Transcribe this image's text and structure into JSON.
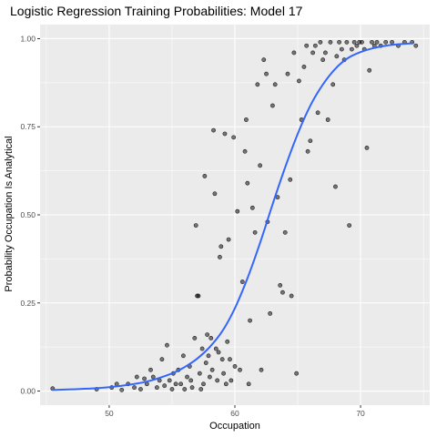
{
  "chart_data": {
    "type": "scatter",
    "title": "Logistic Regression Training Probabilities: Model 17",
    "xlabel": "Occupation",
    "ylabel": "Probability Occupation Is Analytical",
    "xlim": [
      44.5,
      75.5
    ],
    "ylim": [
      -0.04,
      1.04
    ],
    "x_ticks": [
      50,
      60,
      70
    ],
    "x_tick_labels": [
      "50",
      "60",
      "70"
    ],
    "y_ticks": [
      0,
      0.25,
      0.5,
      0.75,
      1.0
    ],
    "y_tick_labels": [
      "0.00",
      "0.25",
      "0.50",
      "0.75",
      "1.00"
    ],
    "grid": true,
    "panel_background": "#ebebeb",
    "point_color": "#000000",
    "point_alpha": 0.5,
    "fit_color": "#3366ff",
    "fit_curve": {
      "x": [
        45.5,
        47,
        49,
        51,
        53,
        55,
        56,
        57,
        58,
        59,
        60,
        61,
        62,
        63,
        64,
        65,
        66,
        67,
        68,
        69,
        70,
        71,
        72,
        73,
        74.2
      ],
      "y": [
        0.003,
        0.005,
        0.008,
        0.015,
        0.027,
        0.05,
        0.068,
        0.092,
        0.125,
        0.17,
        0.235,
        0.32,
        0.42,
        0.53,
        0.635,
        0.73,
        0.81,
        0.87,
        0.915,
        0.945,
        0.962,
        0.973,
        0.98,
        0.984,
        0.987
      ]
    },
    "points": [
      [
        45.5,
        0.007
      ],
      [
        49.0,
        0.005
      ],
      [
        50.2,
        0.01
      ],
      [
        50.6,
        0.02
      ],
      [
        51.0,
        0.003
      ],
      [
        51.5,
        0.02
      ],
      [
        52.0,
        0.01
      ],
      [
        52.2,
        0.04
      ],
      [
        52.5,
        0.005
      ],
      [
        52.8,
        0.035
      ],
      [
        53.0,
        0.02
      ],
      [
        53.3,
        0.06
      ],
      [
        53.5,
        0.04
      ],
      [
        53.8,
        0.01
      ],
      [
        54.0,
        0.03
      ],
      [
        54.2,
        0.09
      ],
      [
        54.4,
        0.015
      ],
      [
        54.6,
        0.13
      ],
      [
        54.8,
        0.03
      ],
      [
        55.0,
        0.005
      ],
      [
        55.1,
        0.05
      ],
      [
        55.3,
        0.02
      ],
      [
        55.5,
        0.06
      ],
      [
        55.7,
        0.02
      ],
      [
        55.9,
        0.1
      ],
      [
        56.0,
        0.005
      ],
      [
        56.2,
        0.04
      ],
      [
        56.4,
        0.07
      ],
      [
        56.5,
        0.03
      ],
      [
        56.6,
        0.01
      ],
      [
        56.8,
        0.15
      ],
      [
        56.9,
        0.47
      ],
      [
        57.0,
        0.27
      ],
      [
        57.1,
        0.27
      ],
      [
        57.2,
        0.05
      ],
      [
        57.3,
        0.005
      ],
      [
        57.4,
        0.12
      ],
      [
        57.5,
        0.02
      ],
      [
        57.6,
        0.61
      ],
      [
        57.7,
        0.08
      ],
      [
        57.8,
        0.16
      ],
      [
        57.9,
        0.1
      ],
      [
        58.0,
        0.04
      ],
      [
        58.1,
        0.15
      ],
      [
        58.2,
        0.06
      ],
      [
        58.3,
        0.74
      ],
      [
        58.4,
        0.56
      ],
      [
        58.5,
        0.12
      ],
      [
        58.6,
        0.03
      ],
      [
        58.7,
        0.11
      ],
      [
        58.8,
        0.38
      ],
      [
        58.9,
        0.41
      ],
      [
        59.0,
        0.09
      ],
      [
        59.1,
        0.05
      ],
      [
        59.2,
        0.73
      ],
      [
        59.3,
        0.02
      ],
      [
        59.4,
        0.14
      ],
      [
        59.5,
        0.43
      ],
      [
        59.6,
        0.09
      ],
      [
        59.7,
        0.03
      ],
      [
        59.9,
        0.72
      ],
      [
        60.0,
        0.07
      ],
      [
        60.2,
        0.51
      ],
      [
        60.4,
        0.06
      ],
      [
        60.6,
        0.31
      ],
      [
        60.8,
        0.68
      ],
      [
        60.9,
        0.77
      ],
      [
        61.0,
        0.59
      ],
      [
        61.1,
        0.02
      ],
      [
        61.2,
        0.2
      ],
      [
        61.4,
        0.52
      ],
      [
        61.6,
        0.45
      ],
      [
        61.8,
        0.87
      ],
      [
        62.0,
        0.64
      ],
      [
        62.1,
        0.06
      ],
      [
        62.3,
        0.94
      ],
      [
        62.5,
        0.9
      ],
      [
        62.6,
        0.48
      ],
      [
        62.8,
        0.22
      ],
      [
        63.0,
        0.81
      ],
      [
        63.2,
        0.87
      ],
      [
        63.4,
        0.55
      ],
      [
        63.6,
        0.3
      ],
      [
        63.8,
        0.28
      ],
      [
        64.0,
        0.45
      ],
      [
        64.2,
        0.9
      ],
      [
        64.4,
        0.6
      ],
      [
        64.5,
        0.27
      ],
      [
        64.7,
        0.96
      ],
      [
        64.9,
        0.05
      ],
      [
        65.1,
        0.88
      ],
      [
        65.3,
        0.77
      ],
      [
        65.5,
        0.92
      ],
      [
        65.7,
        0.98
      ],
      [
        65.8,
        0.68
      ],
      [
        66.0,
        0.71
      ],
      [
        66.2,
        0.96
      ],
      [
        66.4,
        0.98
      ],
      [
        66.6,
        0.79
      ],
      [
        66.8,
        0.99
      ],
      [
        67.0,
        0.94
      ],
      [
        67.2,
        0.96
      ],
      [
        67.4,
        0.77
      ],
      [
        67.6,
        0.99
      ],
      [
        67.8,
        0.87
      ],
      [
        68.0,
        0.58
      ],
      [
        68.1,
        0.95
      ],
      [
        68.3,
        0.99
      ],
      [
        68.5,
        0.97
      ],
      [
        68.7,
        0.94
      ],
      [
        68.9,
        0.99
      ],
      [
        69.1,
        0.47
      ],
      [
        69.3,
        0.97
      ],
      [
        69.5,
        0.99
      ],
      [
        69.7,
        0.98
      ],
      [
        69.9,
        0.99
      ],
      [
        70.1,
        0.99
      ],
      [
        70.3,
        0.97
      ],
      [
        70.5,
        0.69
      ],
      [
        70.7,
        0.91
      ],
      [
        70.9,
        0.99
      ],
      [
        71.1,
        0.98
      ],
      [
        71.3,
        0.99
      ],
      [
        71.6,
        0.98
      ],
      [
        72.0,
        0.99
      ],
      [
        72.5,
        0.99
      ],
      [
        73.0,
        0.98
      ],
      [
        73.5,
        0.99
      ],
      [
        74.1,
        0.99
      ],
      [
        74.4,
        0.98
      ]
    ]
  }
}
